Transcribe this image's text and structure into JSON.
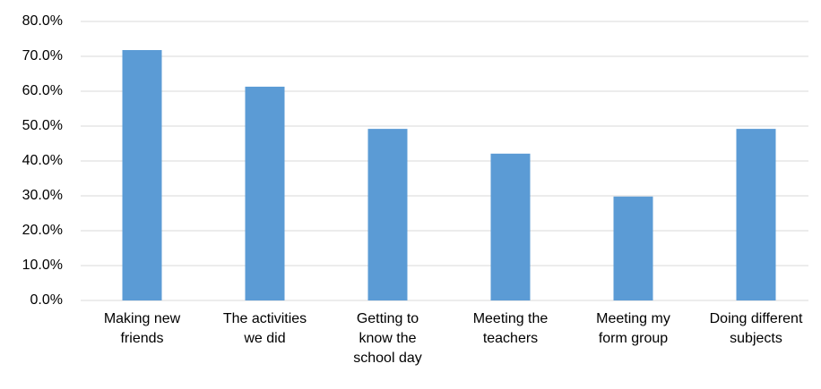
{
  "chart_data": {
    "type": "bar",
    "categories": [
      "Making new friends",
      "The activities we did",
      "Getting to know the school day",
      "Meeting the teachers",
      "Meeting my form group",
      "Doing different subjects"
    ],
    "values": [
      71.8,
      61.3,
      49.2,
      42.1,
      29.8,
      49.2
    ],
    "color": "#5b9bd5",
    "ylim": [
      0,
      80
    ],
    "yticks": [
      {
        "value": 0,
        "label": "0.0%"
      },
      {
        "value": 10,
        "label": "10.0%"
      },
      {
        "value": 20,
        "label": "20.0%"
      },
      {
        "value": 30,
        "label": "30.0%"
      },
      {
        "value": 40,
        "label": "40.0%"
      },
      {
        "value": 50,
        "label": "50.0%"
      },
      {
        "value": 60,
        "label": "60.0%"
      },
      {
        "value": 70,
        "label": "70.0%"
      },
      {
        "value": 80,
        "label": "80.0%"
      }
    ],
    "grid": true
  }
}
